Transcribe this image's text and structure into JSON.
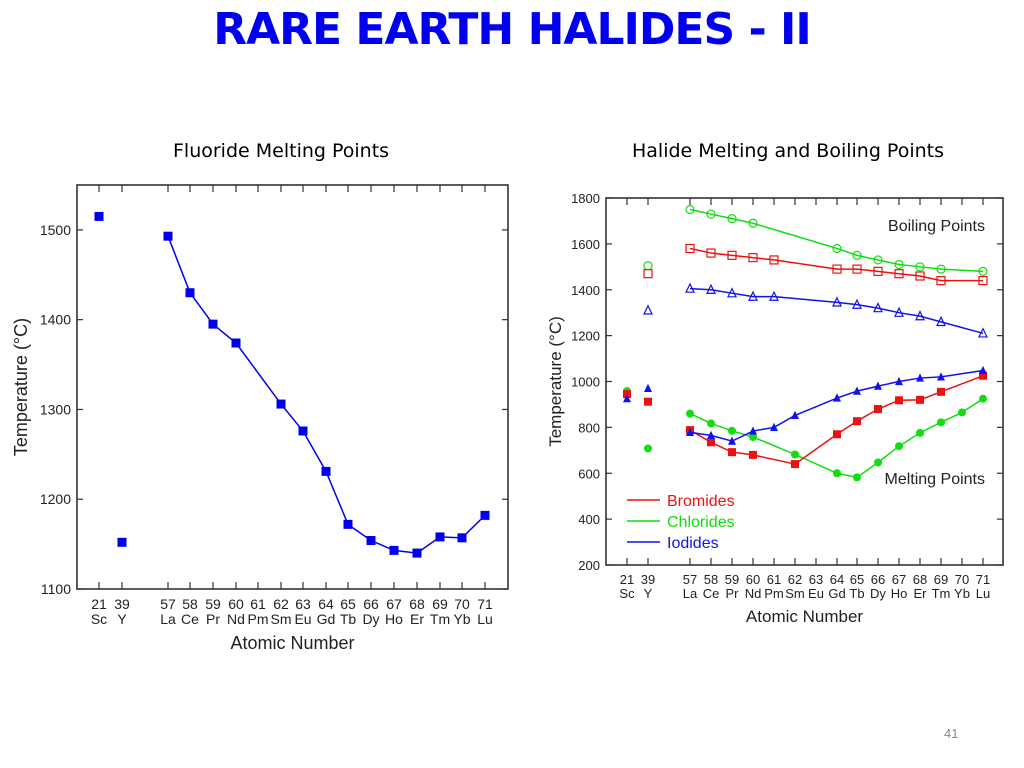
{
  "slide": {
    "title": "RARE EARTH HALIDES - II",
    "page_number": "41",
    "title_color": "#0000ee"
  },
  "chart_data": [
    {
      "type": "line",
      "title": "Fluoride Melting Points",
      "xlabel": "Atomic Number",
      "ylabel": "Temperature (°C)",
      "ylim": [
        1100,
        1550
      ],
      "yticks": [
        1100,
        1200,
        1300,
        1400,
        1500
      ],
      "grid": false,
      "categories": [
        "21 Sc",
        "39 Y",
        "57 La",
        "58 Ce",
        "59 Pr",
        "60 Nd",
        "61 Pm",
        "62 Sm",
        "63 Eu",
        "64 Gd",
        "65 Tb",
        "66 Dy",
        "67 Ho",
        "68 Er",
        "69 Tm",
        "70 Yb",
        "71 Lu"
      ],
      "x_numbers": [
        "21",
        "39",
        "57",
        "58",
        "59",
        "60",
        "61",
        "62",
        "63",
        "64",
        "65",
        "66",
        "67",
        "68",
        "69",
        "70",
        "71"
      ],
      "x_symbols": [
        "Sc",
        "Y",
        "La",
        "Ce",
        "Pr",
        "Nd",
        "Pm",
        "Sm",
        "Eu",
        "Gd",
        "Tb",
        "Dy",
        "Ho",
        "Er",
        "Tm",
        "Yb",
        "Lu"
      ],
      "series": [
        {
          "name": "Fluorides",
          "color": "#0000ee",
          "marker": "filled-square",
          "values": [
            1515,
            1152,
            1493,
            1430,
            1395,
            1374,
            null,
            1306,
            1276,
            1231,
            1172,
            1154,
            1143,
            1140,
            1158,
            1157,
            1182
          ]
        }
      ]
    },
    {
      "type": "line",
      "title": "Halide Melting and Boiling Points",
      "xlabel": "Atomic Number",
      "ylabel": "Temperature (°C)",
      "ylim": [
        200,
        1800
      ],
      "yticks": [
        200,
        400,
        600,
        800,
        1000,
        1200,
        1400,
        1600,
        1800
      ],
      "grid": false,
      "legend_position": "lower-left",
      "annotations": [
        "Boiling Points",
        "Melting Points"
      ],
      "categories": [
        "21 Sc",
        "39 Y",
        "57 La",
        "58 Ce",
        "59 Pr",
        "60 Nd",
        "61 Pm",
        "62 Sm",
        "63 Eu",
        "64 Gd",
        "65 Tb",
        "66 Dy",
        "67 Ho",
        "68 Er",
        "69 Tm",
        "70 Yb",
        "71 Lu"
      ],
      "x_numbers": [
        "21",
        "39",
        "57",
        "58",
        "59",
        "60",
        "61",
        "62",
        "63",
        "64",
        "65",
        "66",
        "67",
        "68",
        "69",
        "70",
        "71"
      ],
      "x_symbols": [
        "Sc",
        "Y",
        "La",
        "Ce",
        "Pr",
        "Nd",
        "Pm",
        "Sm",
        "Eu",
        "Gd",
        "Tb",
        "Dy",
        "Ho",
        "Er",
        "Tm",
        "Yb",
        "Lu"
      ],
      "legend": [
        {
          "label": "Bromides",
          "color": "#ee1111"
        },
        {
          "label": "Chlorides",
          "color": "#11dd11"
        },
        {
          "label": "Iodides",
          "color": "#1111ee"
        }
      ],
      "series": [
        {
          "name": "Chlorides boiling",
          "color": "#11dd11",
          "marker": "open-circle",
          "values": [
            null,
            1505,
            1750,
            1730,
            1710,
            1690,
            null,
            null,
            null,
            1580,
            1550,
            1530,
            1510,
            1500,
            1490,
            null,
            1480
          ]
        },
        {
          "name": "Bromides boiling",
          "color": "#ee1111",
          "marker": "open-square",
          "values": [
            null,
            1470,
            1580,
            1560,
            1550,
            1540,
            1530,
            null,
            null,
            1490,
            1490,
            1480,
            1470,
            1460,
            1440,
            null,
            1440
          ]
        },
        {
          "name": "Iodides boiling",
          "color": "#1111ee",
          "marker": "open-triangle",
          "values": [
            null,
            1310,
            1405,
            1400,
            1385,
            1370,
            1370,
            null,
            null,
            1345,
            1335,
            1320,
            1300,
            1285,
            1260,
            null,
            1210
          ]
        },
        {
          "name": "Chlorides melting",
          "color": "#11dd11",
          "marker": "filled-circle",
          "values": [
            958,
            708,
            860,
            817,
            785,
            758,
            null,
            682,
            null,
            600,
            582,
            647,
            718,
            776,
            822,
            865,
            925
          ]
        },
        {
          "name": "Bromides melting",
          "color": "#ee1111",
          "marker": "filled-square",
          "values": [
            945,
            912,
            788,
            735,
            692,
            680,
            null,
            640,
            null,
            770,
            827,
            880,
            918,
            920,
            955,
            null,
            1025
          ]
        },
        {
          "name": "Iodides melting",
          "color": "#1111ee",
          "marker": "filled-triangle",
          "values": [
            925,
            970,
            778,
            765,
            740,
            784,
            800,
            852,
            null,
            928,
            958,
            980,
            1000,
            1015,
            1020,
            null,
            1048
          ]
        }
      ]
    }
  ]
}
